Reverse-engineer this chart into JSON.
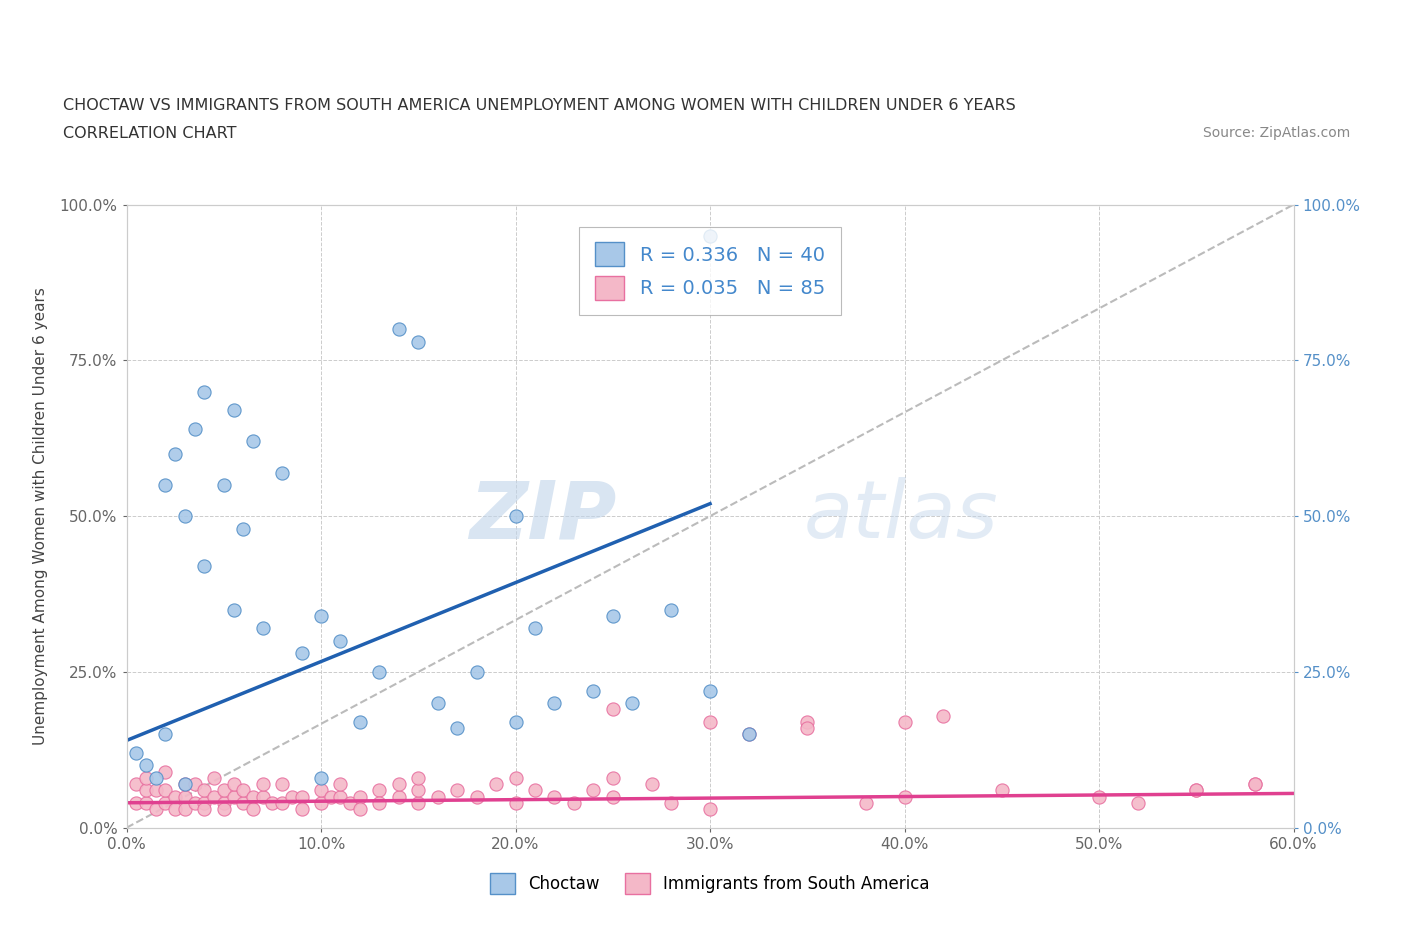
{
  "title_line1": "CHOCTAW VS IMMIGRANTS FROM SOUTH AMERICA UNEMPLOYMENT AMONG WOMEN WITH CHILDREN UNDER 6 YEARS",
  "title_line2": "CORRELATION CHART",
  "source_text": "Source: ZipAtlas.com",
  "ylabel": "Unemployment Among Women with Children Under 6 years",
  "xlim": [
    0.0,
    0.6
  ],
  "ylim": [
    0.0,
    1.0
  ],
  "xticks": [
    0.0,
    0.1,
    0.2,
    0.3,
    0.4,
    0.5,
    0.6
  ],
  "xticklabels": [
    "0.0%",
    "10.0%",
    "20.0%",
    "30.0%",
    "40.0%",
    "50.0%",
    "60.0%"
  ],
  "yticks": [
    0.0,
    0.25,
    0.5,
    0.75,
    1.0
  ],
  "yticklabels": [
    "0.0%",
    "25.0%",
    "50.0%",
    "75.0%",
    "100.0%"
  ],
  "right_yticklabels": [
    "0.0%",
    "25.0%",
    "50.0%",
    "75.0%",
    "100.0%"
  ],
  "choctaw_color": "#a8c8e8",
  "immigrant_color": "#f4b8c8",
  "choctaw_edge_color": "#5590c8",
  "immigrant_edge_color": "#e870a0",
  "choctaw_line_color": "#2060b0",
  "immigrant_line_color": "#e04090",
  "R_choctaw": 0.336,
  "N_choctaw": 40,
  "R_immigrant": 0.035,
  "N_immigrant": 85,
  "watermark_zip": "ZIP",
  "watermark_atlas": "atlas",
  "legend_choctaw": "Choctaw",
  "legend_immigrant": "Immigrants from South America",
  "choctaw_x": [
    0.005,
    0.01,
    0.015,
    0.02,
    0.02,
    0.025,
    0.03,
    0.03,
    0.035,
    0.04,
    0.04,
    0.05,
    0.055,
    0.055,
    0.06,
    0.065,
    0.07,
    0.08,
    0.09,
    0.1,
    0.1,
    0.11,
    0.12,
    0.13,
    0.14,
    0.15,
    0.16,
    0.17,
    0.18,
    0.2,
    0.2,
    0.21,
    0.22,
    0.24,
    0.25,
    0.26,
    0.28,
    0.3,
    0.3,
    0.32
  ],
  "choctaw_y": [
    0.12,
    0.1,
    0.08,
    0.15,
    0.55,
    0.6,
    0.5,
    0.07,
    0.64,
    0.42,
    0.7,
    0.55,
    0.35,
    0.67,
    0.48,
    0.62,
    0.32,
    0.57,
    0.28,
    0.34,
    0.08,
    0.3,
    0.17,
    0.25,
    0.8,
    0.78,
    0.2,
    0.16,
    0.25,
    0.5,
    0.17,
    0.32,
    0.2,
    0.22,
    0.34,
    0.2,
    0.35,
    0.22,
    0.95,
    0.15
  ],
  "immigrant_x": [
    0.005,
    0.005,
    0.01,
    0.01,
    0.01,
    0.015,
    0.015,
    0.02,
    0.02,
    0.02,
    0.025,
    0.025,
    0.03,
    0.03,
    0.03,
    0.035,
    0.035,
    0.04,
    0.04,
    0.04,
    0.045,
    0.045,
    0.05,
    0.05,
    0.05,
    0.055,
    0.055,
    0.06,
    0.06,
    0.065,
    0.065,
    0.07,
    0.07,
    0.075,
    0.08,
    0.08,
    0.085,
    0.09,
    0.09,
    0.1,
    0.1,
    0.105,
    0.11,
    0.11,
    0.115,
    0.12,
    0.12,
    0.13,
    0.13,
    0.14,
    0.14,
    0.15,
    0.15,
    0.16,
    0.17,
    0.18,
    0.19,
    0.2,
    0.21,
    0.22,
    0.23,
    0.24,
    0.25,
    0.27,
    0.28,
    0.3,
    0.32,
    0.35,
    0.38,
    0.4,
    0.42,
    0.45,
    0.5,
    0.52,
    0.55,
    0.58,
    0.25,
    0.3,
    0.35,
    0.4,
    0.15,
    0.2,
    0.25,
    0.58,
    0.55
  ],
  "immigrant_y": [
    0.04,
    0.07,
    0.04,
    0.06,
    0.08,
    0.03,
    0.06,
    0.04,
    0.06,
    0.09,
    0.05,
    0.03,
    0.05,
    0.07,
    0.03,
    0.04,
    0.07,
    0.04,
    0.06,
    0.03,
    0.05,
    0.08,
    0.04,
    0.06,
    0.03,
    0.05,
    0.07,
    0.04,
    0.06,
    0.05,
    0.03,
    0.05,
    0.07,
    0.04,
    0.04,
    0.07,
    0.05,
    0.05,
    0.03,
    0.04,
    0.06,
    0.05,
    0.05,
    0.07,
    0.04,
    0.05,
    0.03,
    0.06,
    0.04,
    0.05,
    0.07,
    0.04,
    0.06,
    0.05,
    0.06,
    0.05,
    0.07,
    0.04,
    0.06,
    0.05,
    0.04,
    0.06,
    0.05,
    0.07,
    0.04,
    0.03,
    0.15,
    0.17,
    0.04,
    0.05,
    0.18,
    0.06,
    0.05,
    0.04,
    0.06,
    0.07,
    0.19,
    0.17,
    0.16,
    0.17,
    0.08,
    0.08,
    0.08,
    0.07,
    0.06
  ],
  "blue_line_x": [
    0.0,
    0.3
  ],
  "blue_line_y": [
    0.14,
    0.52
  ],
  "pink_line_x": [
    0.0,
    0.6
  ],
  "pink_line_y": [
    0.04,
    0.055
  ]
}
